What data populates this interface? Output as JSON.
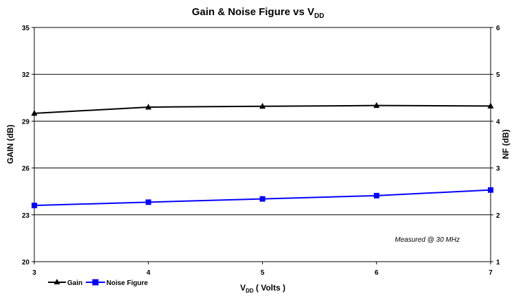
{
  "chart_data": {
    "type": "line",
    "title": {
      "main": "Gain & Noise Figure vs V",
      "sub": "DD"
    },
    "xlabel": {
      "main": "V",
      "sub": "DD",
      "rest": " ( Volts )"
    },
    "ylabel_left": "GAIN (dB)",
    "ylabel_right": "NF (dB)",
    "x": [
      3,
      4,
      5,
      6,
      7
    ],
    "xlim": [
      3,
      7
    ],
    "ylim_left": [
      20,
      35
    ],
    "ylim_right": [
      1,
      6
    ],
    "xticks": [
      "3",
      "4",
      "5",
      "6",
      "7"
    ],
    "yticks_left": [
      "20",
      "23",
      "26",
      "29",
      "32",
      "35"
    ],
    "yticks_right": [
      "1",
      "2",
      "3",
      "4",
      "5",
      "6"
    ],
    "grid": true,
    "legend_position": "bottom-left",
    "annotation": "Measured @ 30 MHz",
    "series": [
      {
        "name": "Gain",
        "axis": "left",
        "marker": "triangle",
        "color": "#000000",
        "values": [
          29.5,
          29.9,
          29.95,
          30.0,
          29.97
        ]
      },
      {
        "name": "Noise Figure",
        "axis": "right",
        "marker": "square",
        "color": "#0000ff",
        "values": [
          2.2,
          2.27,
          2.34,
          2.41,
          2.53
        ]
      }
    ]
  }
}
